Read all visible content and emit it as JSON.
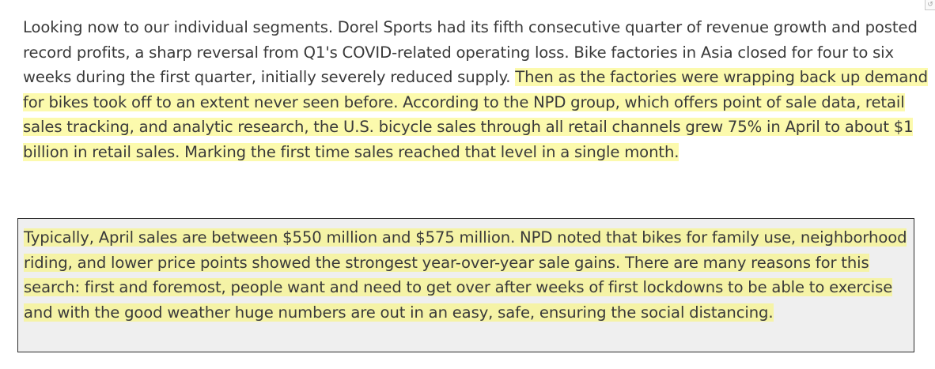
{
  "corner_icon": "↺",
  "paragraph1": {
    "plain": "Looking now to our individual segments. Dorel Sports had its fifth consecutive quarter of revenue growth and posted record profits, a sharp reversal from Q1's COVID-related operating loss. Bike factories in Asia closed for four to six weeks during the first quarter, initially severely reduced supply. ",
    "highlighted": "Then as the factories were wrapping back up demand for bikes took off to an extent never seen before. According to the NPD group, which offers point of sale data, retail sales tracking, and analytic research, the U.S. bicycle sales through all retail channels grew 75% in April to about $1 billion in retail sales. Marking the first time sales reached that level in a single month."
  },
  "quote": {
    "highlighted": "Typically, April sales are between $550 million and $575 million. NPD noted that bikes for family use, neighborhood riding, and lower price points showed the strongest year-over-year sale gains. There are many reasons for this search: first and foremost, people want and need to get over after weeks of first lockdowns to be able to exercise and with the good weather huge numbers are out in an easy, safe, ensuring the social distancing."
  },
  "colors": {
    "highlight": "#fcfaad",
    "quote_highlight": "#f5f3a6",
    "quote_background": "#efefef",
    "text": "#3a3a3a"
  }
}
